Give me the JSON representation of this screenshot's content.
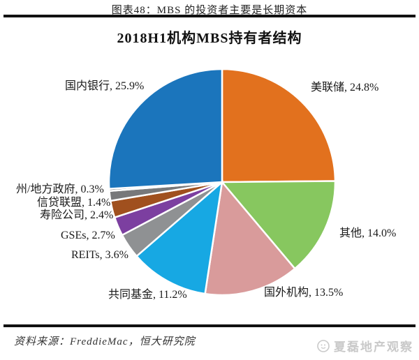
{
  "figure": {
    "caption": "图表48：MBS 的投资者主要是长期资本",
    "source": "资料来源：FreddieMac，恒大研究院",
    "watermark": "夏磊地产观察"
  },
  "chart_data": {
    "type": "pie",
    "title": "2018H1机构MBS持有者结构",
    "direction": "clockwise",
    "start_angle_deg": 0,
    "legend_position": "none",
    "label_format": "category, value%",
    "slice_border_color": "#ffffff",
    "slices": [
      {
        "key": "fed",
        "label": "美联储",
        "value": 24.8,
        "display": "美联储, 24.8%",
        "color": "#E2711E"
      },
      {
        "key": "other",
        "label": "其他",
        "value": 14.0,
        "display": "其他, 14.0%",
        "color": "#87C75F"
      },
      {
        "key": "foreign-inst",
        "label": "国外机构",
        "value": 13.5,
        "display": "国外机构, 13.5%",
        "color": "#D99B9B"
      },
      {
        "key": "mutual-funds",
        "label": "共同基金",
        "value": 11.2,
        "display": "共同基金, 11.2%",
        "color": "#17A8E3"
      },
      {
        "key": "reits",
        "label": "REITs",
        "value": 3.6,
        "display": "REITs, 3.6%",
        "color": "#8F9193"
      },
      {
        "key": "gses",
        "label": "GSEs",
        "value": 2.7,
        "display": "GSEs, 2.7%",
        "color": "#7C3FA0"
      },
      {
        "key": "life-insurers",
        "label": "寿险公司",
        "value": 2.4,
        "display": "寿险公司, 2.4%",
        "color": "#A0501E"
      },
      {
        "key": "credit-unions",
        "label": "信贷联盟",
        "value": 1.4,
        "display": "信贷联盟, 1.4%",
        "color": "#77787A"
      },
      {
        "key": "state-local-gov",
        "label": "州/地方政府",
        "value": 0.3,
        "display": "州/地方政府, 0.3%",
        "color": "#595959"
      },
      {
        "key": "domestic-banks",
        "label": "国内银行",
        "value": 25.9,
        "display": "国内银行, 25.9%",
        "color": "#1B75BC"
      }
    ]
  }
}
